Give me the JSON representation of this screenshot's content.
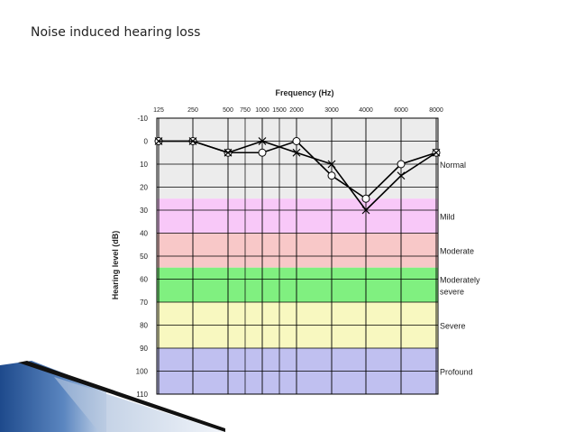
{
  "slide": {
    "title": "Noise induced hearing loss"
  },
  "chart_data": {
    "type": "line",
    "title": "Frequency (Hz)",
    "xlabel": "Frequency (Hz)",
    "ylabel": "Hearing level (dB)",
    "x_ticks": [
      "125",
      "250",
      "500",
      "750",
      "1000",
      "1500",
      "2000",
      "3000",
      "4000",
      "6000",
      "8000"
    ],
    "y_ticks": [
      -10,
      0,
      10,
      20,
      30,
      40,
      50,
      60,
      70,
      80,
      90,
      100,
      110
    ],
    "ylim": [
      -10,
      110
    ],
    "y_inverted": true,
    "grid": true,
    "bands": [
      {
        "label": "Normal",
        "from": -10,
        "to": 25,
        "color": "#ececec"
      },
      {
        "label": "Mild",
        "from": 25,
        "to": 40,
        "color": "#f8c8f8"
      },
      {
        "label": "Moderate",
        "from": 40,
        "to": 55,
        "color": "#f8c8c8"
      },
      {
        "label": "Moderately\nsevere",
        "from": 55,
        "to": 70,
        "color": "#80f080"
      },
      {
        "label": "Severe",
        "from": 70,
        "to": 90,
        "color": "#f8f8c0"
      },
      {
        "label": "Profound",
        "from": 90,
        "to": 110,
        "color": "#c0c0f0"
      }
    ],
    "series": [
      {
        "marker": "circle",
        "x": [
          "125",
          "250",
          "500",
          "1000",
          "2000",
          "3000",
          "4000",
          "6000",
          "8000"
        ],
        "values": [
          0,
          0,
          5,
          5,
          0,
          15,
          25,
          10,
          5
        ]
      },
      {
        "marker": "cross",
        "x": [
          "125",
          "250",
          "500",
          "1000",
          "2000",
          "3000",
          "4000",
          "6000",
          "8000"
        ],
        "values": [
          0,
          0,
          5,
          0,
          5,
          10,
          30,
          15,
          5
        ]
      }
    ]
  }
}
